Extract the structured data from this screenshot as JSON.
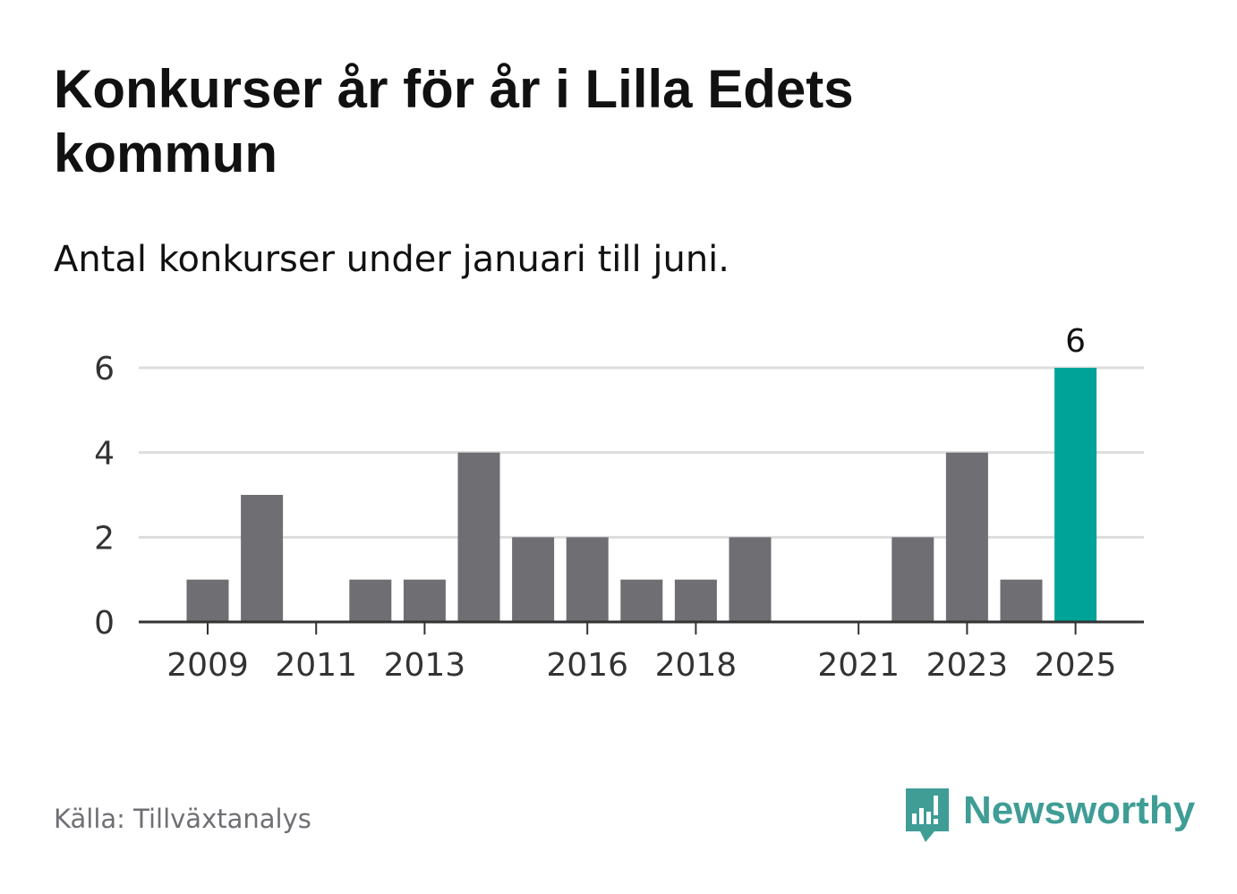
{
  "title": "Konkurser år för år i Lilla Edets kommun",
  "subtitle": "Antal konkurser under januari till juni.",
  "source": "Källa: Tillväxtanalys",
  "brand": {
    "name": "Newsworthy",
    "color": "#3f9d96",
    "icon": "bar-chart-speech-bubble-icon"
  },
  "colors": {
    "bar": "#6f6e73",
    "highlight": "#00a398",
    "grid": "#dddddd",
    "axis": "#333333"
  },
  "chart_data": {
    "type": "bar",
    "x": [
      2009,
      2010,
      2011,
      2012,
      2013,
      2014,
      2015,
      2016,
      2017,
      2018,
      2019,
      2020,
      2021,
      2022,
      2023,
      2024,
      2025
    ],
    "values": [
      1,
      3,
      0,
      1,
      1,
      4,
      2,
      2,
      1,
      1,
      2,
      0,
      0,
      2,
      4,
      1,
      6
    ],
    "highlight": 2025,
    "data_labels": [
      {
        "x": 2025,
        "text": "6"
      }
    ],
    "y_ticks": [
      0,
      2,
      4,
      6
    ],
    "x_ticks": [
      "2009",
      "2011",
      "2013",
      "2016",
      "2018",
      "2021",
      "2023",
      "2025"
    ],
    "ylim": [
      0,
      6
    ],
    "grid": true,
    "legend": "none"
  }
}
